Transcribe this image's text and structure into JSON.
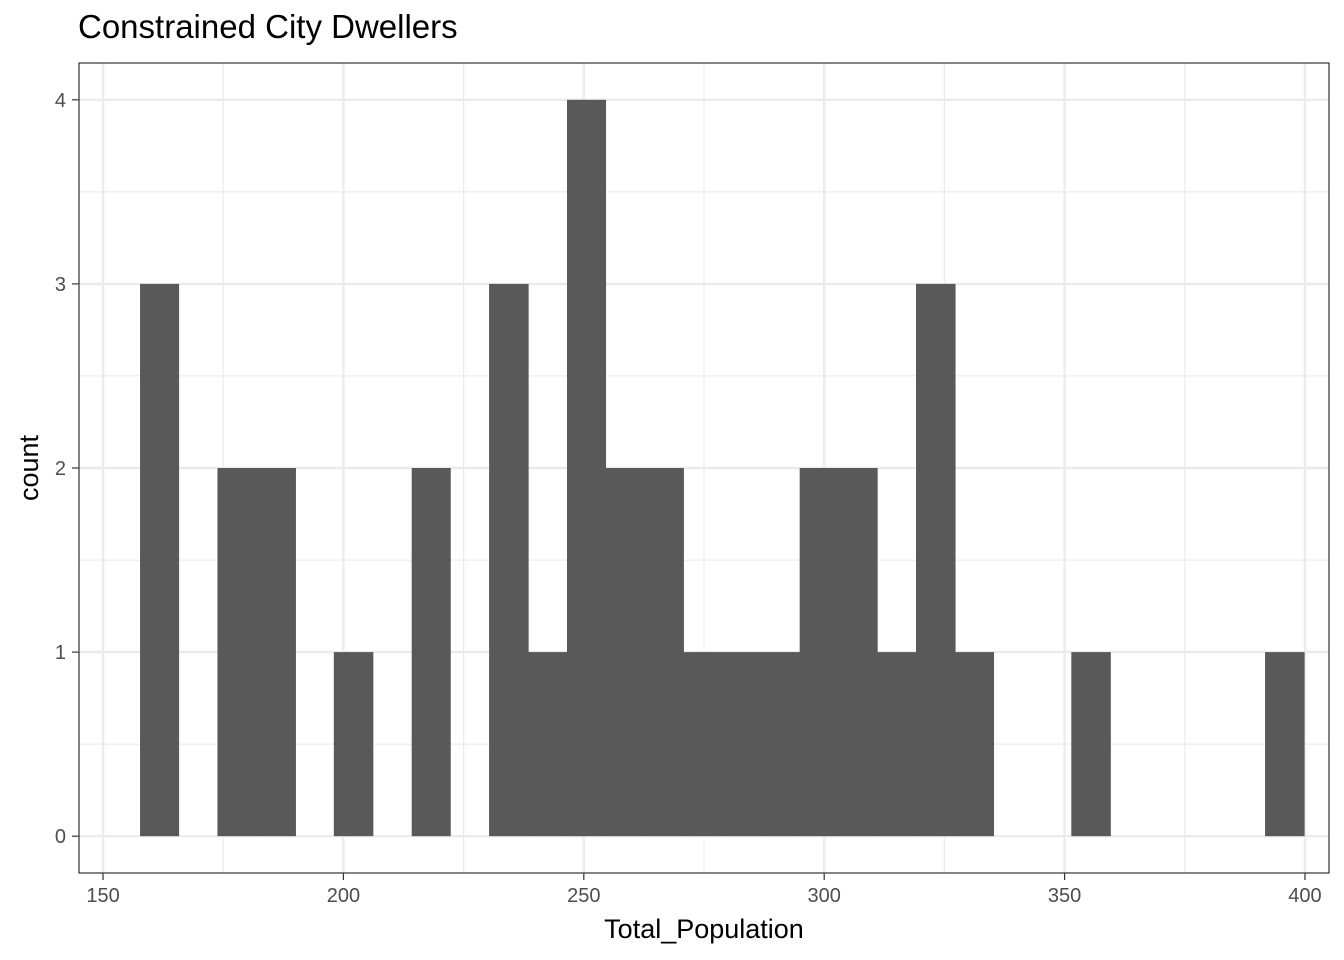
{
  "chart_data": {
    "type": "bar",
    "title": "Constrained City Dwellers",
    "xlabel": "Total_Population",
    "ylabel": "count",
    "xlim": [
      145,
      405
    ],
    "ylim": [
      -0.2,
      4.2
    ],
    "x_ticks": [
      150,
      200,
      250,
      300,
      350,
      400
    ],
    "x_tick_labels": [
      "150",
      "200",
      "250",
      "300",
      "350",
      "400"
    ],
    "y_ticks": [
      0,
      1,
      2,
      3,
      4
    ],
    "y_tick_labels": [
      "0",
      "1",
      "2",
      "3",
      "4"
    ],
    "bin_width": 8.07,
    "bins": [
      {
        "x0": 157.7,
        "x1": 165.7,
        "count": 3
      },
      {
        "x0": 165.7,
        "x1": 173.8,
        "count": 0
      },
      {
        "x0": 173.8,
        "x1": 181.9,
        "count": 2
      },
      {
        "x0": 181.9,
        "x1": 190.0,
        "count": 2
      },
      {
        "x0": 190.0,
        "x1": 198.0,
        "count": 0
      },
      {
        "x0": 198.0,
        "x1": 206.1,
        "count": 1
      },
      {
        "x0": 206.1,
        "x1": 214.2,
        "count": 0
      },
      {
        "x0": 214.2,
        "x1": 222.2,
        "count": 2
      },
      {
        "x0": 222.2,
        "x1": 230.3,
        "count": 0
      },
      {
        "x0": 230.3,
        "x1": 238.4,
        "count": 3
      },
      {
        "x0": 238.4,
        "x1": 246.5,
        "count": 1
      },
      {
        "x0": 246.5,
        "x1": 254.5,
        "count": 4
      },
      {
        "x0": 254.5,
        "x1": 262.6,
        "count": 2
      },
      {
        "x0": 262.6,
        "x1": 270.7,
        "count": 2
      },
      {
        "x0": 270.7,
        "x1": 278.7,
        "count": 1
      },
      {
        "x0": 278.7,
        "x1": 286.8,
        "count": 1
      },
      {
        "x0": 286.8,
        "x1": 294.9,
        "count": 1
      },
      {
        "x0": 294.9,
        "x1": 303.0,
        "count": 2
      },
      {
        "x0": 303.0,
        "x1": 311.0,
        "count": 2
      },
      {
        "x0": 311.0,
        "x1": 319.1,
        "count": 1
      },
      {
        "x0": 319.1,
        "x1": 327.2,
        "count": 3
      },
      {
        "x0": 327.2,
        "x1": 335.2,
        "count": 1
      },
      {
        "x0": 335.2,
        "x1": 343.3,
        "count": 0
      },
      {
        "x0": 343.3,
        "x1": 351.4,
        "count": 0
      },
      {
        "x0": 351.4,
        "x1": 359.5,
        "count": 1
      },
      {
        "x0": 359.5,
        "x1": 367.5,
        "count": 0
      },
      {
        "x0": 367.5,
        "x1": 375.6,
        "count": 0
      },
      {
        "x0": 375.6,
        "x1": 383.7,
        "count": 0
      },
      {
        "x0": 383.7,
        "x1": 391.7,
        "count": 0
      },
      {
        "x0": 391.7,
        "x1": 399.8,
        "count": 1
      }
    ],
    "bar_color": "#595959",
    "grid": true,
    "grid_color": "#ebebeb",
    "panel_border_color": "#333333",
    "tick_label_color": "#4d4d4d"
  }
}
